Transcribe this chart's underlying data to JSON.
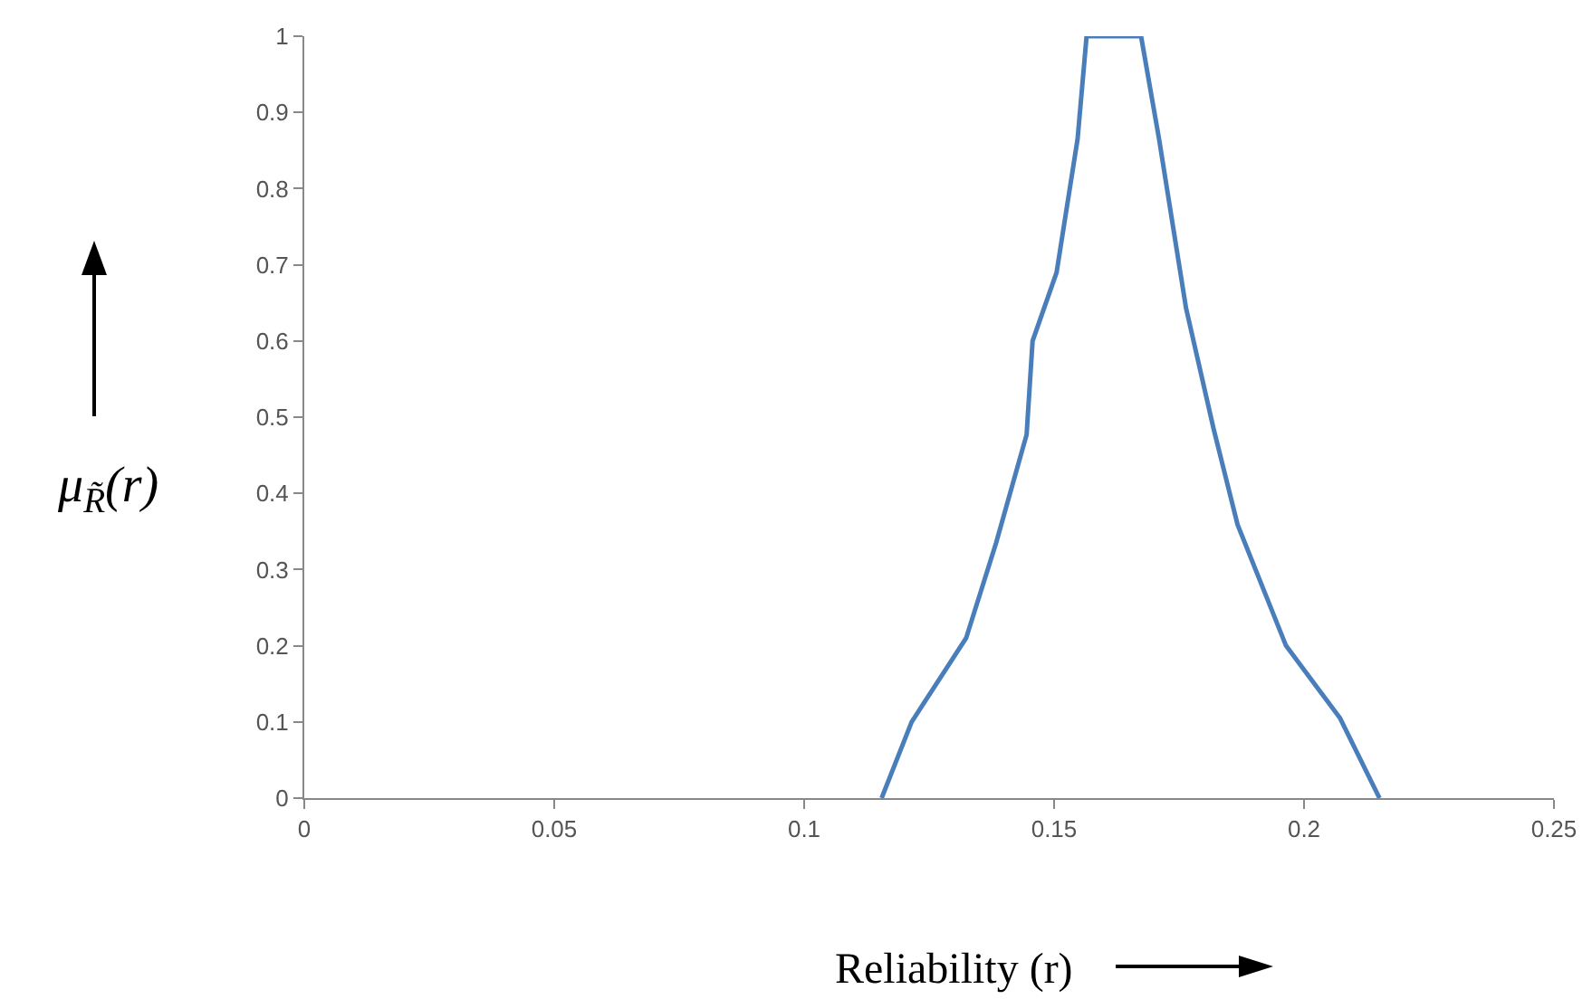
{
  "chart_data": {
    "type": "line",
    "xlabel": "Reliability (r)",
    "ylabel": "μ$_{R̃}$(r)",
    "x": [
      0.1155,
      0.1215,
      0.1324,
      0.1384,
      0.1445,
      0.1457,
      0.1505,
      0.1547,
      0.1565,
      0.1674,
      0.171,
      0.1764,
      0.1819,
      0.1867,
      0.1964,
      0.2072,
      0.2151
    ],
    "series": [
      {
        "color": "#4a7ebb",
        "values": [
          0,
          0.1,
          0.21,
          0.335,
          0.477,
          0.6,
          0.69,
          0.865,
          1,
          1,
          0.865,
          0.643,
          0.485,
          0.359,
          0.2,
          0.105,
          0
        ]
      }
    ],
    "xlim": [
      0,
      0.25
    ],
    "xticks": [
      0,
      0.05,
      0.1,
      0.15,
      0.2,
      0.25
    ],
    "ylim": [
      0,
      1
    ],
    "yticks": [
      0,
      0.1,
      0.2,
      0.3,
      0.4,
      0.5,
      0.6,
      0.7,
      0.8,
      0.9,
      1
    ],
    "grid": false,
    "marker": "none",
    "line_style": "solid"
  }
}
